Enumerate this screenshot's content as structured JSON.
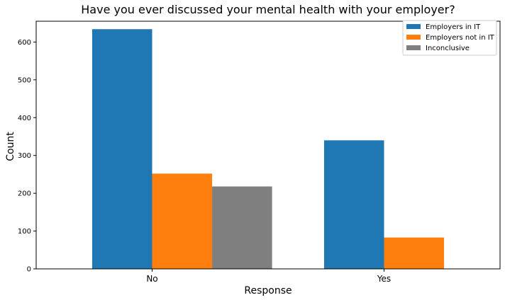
{
  "chart_data": {
    "type": "bar",
    "title": "Have you ever discussed your mental health with your employer?",
    "xlabel": "Response",
    "ylabel": "Count",
    "categories": [
      "No",
      "Yes"
    ],
    "series": [
      {
        "name": "Employers in IT",
        "color": "#1f77b4",
        "values": [
          634,
          340
        ]
      },
      {
        "name": "Employers not in IT",
        "color": "#ff7f0e",
        "values": [
          252,
          83
        ]
      },
      {
        "name": "Inconclusive",
        "color": "#7f7f7f",
        "values": [
          218,
          0
        ]
      }
    ],
    "ylim": [
      0,
      655
    ],
    "yticks": [
      0,
      100,
      200,
      300,
      400,
      500,
      600
    ],
    "legend": "top-right",
    "grid": false
  }
}
